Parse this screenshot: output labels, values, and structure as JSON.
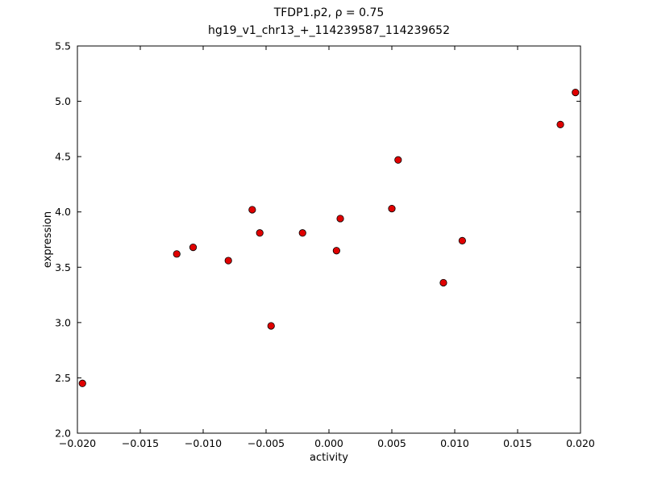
{
  "figure": {
    "background": "#ffffff",
    "axes_edge_color": "#000000"
  },
  "chart_data": {
    "type": "scatter",
    "title": "TFDP1.p2, ρ = 0.75",
    "subtitle": "hg19_v1_chr13_+_114239587_114239652",
    "xlabel": "activity",
    "ylabel": "expression",
    "xlim": [
      -0.02,
      0.02
    ],
    "ylim": [
      2.0,
      5.5
    ],
    "grid": false,
    "legend": "none",
    "marker": {
      "shape": "circle",
      "fill_color": "#e00000",
      "edge_color": "#000000",
      "radius_px": 4.2
    },
    "xticks": [
      -0.02,
      -0.015,
      -0.01,
      -0.005,
      0.0,
      0.005,
      0.01,
      0.015,
      0.02
    ],
    "xtick_labels": [
      "−0.020",
      "−0.015",
      "−0.010",
      "−0.005",
      "0.000",
      "0.005",
      "0.010",
      "0.015",
      "0.020"
    ],
    "yticks": [
      2.0,
      2.5,
      3.0,
      3.5,
      4.0,
      4.5,
      5.0,
      5.5
    ],
    "ytick_labels": [
      "2.0",
      "2.5",
      "3.0",
      "3.5",
      "4.0",
      "4.5",
      "5.0",
      "5.5"
    ],
    "points": [
      {
        "x": -0.0196,
        "y": 2.45
      },
      {
        "x": -0.0121,
        "y": 3.62
      },
      {
        "x": -0.0108,
        "y": 3.68
      },
      {
        "x": -0.008,
        "y": 3.56
      },
      {
        "x": -0.0061,
        "y": 4.02
      },
      {
        "x": -0.0055,
        "y": 3.81
      },
      {
        "x": -0.0046,
        "y": 2.97
      },
      {
        "x": -0.0021,
        "y": 3.81
      },
      {
        "x": 0.0006,
        "y": 3.65
      },
      {
        "x": 0.0009,
        "y": 3.94
      },
      {
        "x": 0.005,
        "y": 4.03
      },
      {
        "x": 0.0055,
        "y": 4.47
      },
      {
        "x": 0.0091,
        "y": 3.36
      },
      {
        "x": 0.0106,
        "y": 3.74
      },
      {
        "x": 0.0184,
        "y": 4.79
      },
      {
        "x": 0.0196,
        "y": 5.08
      }
    ]
  }
}
